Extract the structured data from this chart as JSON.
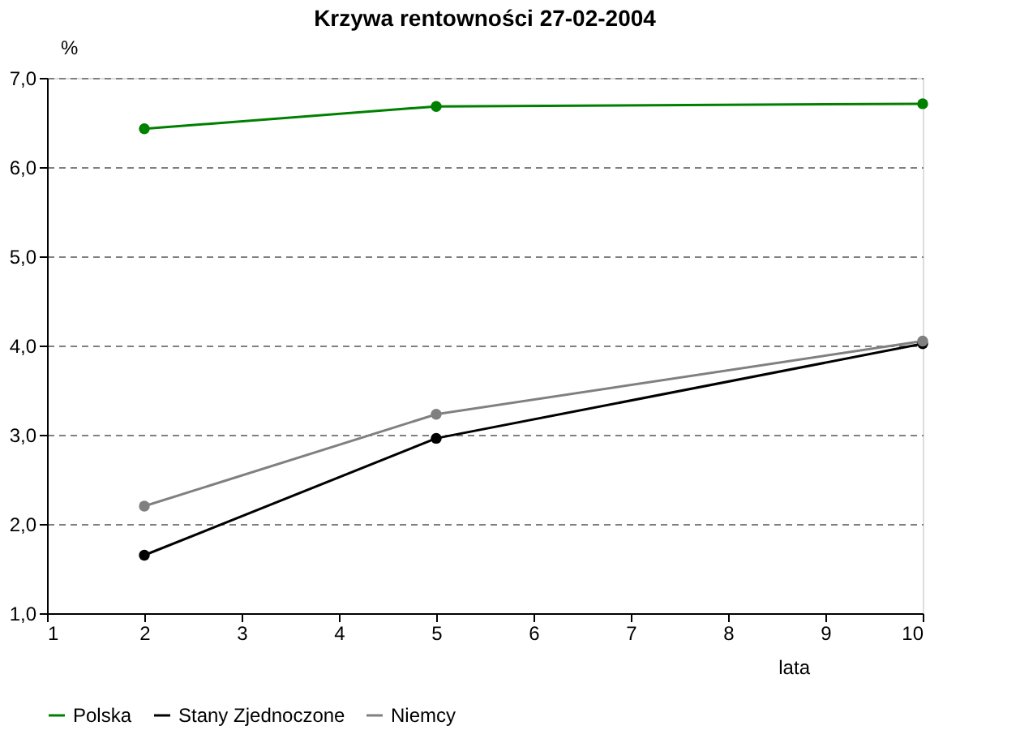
{
  "chart_data": {
    "type": "line",
    "title": "Krzywa rentowności 27-02-2004",
    "ylabel": "%",
    "xlabel": "lata",
    "x": [
      2,
      5,
      10
    ],
    "series": [
      {
        "name": "Polska",
        "color": "#008000",
        "values": [
          6.43,
          6.68,
          6.71
        ]
      },
      {
        "name": "Stany Zjednoczone",
        "color": "#000000",
        "values": [
          1.65,
          2.96,
          4.02
        ]
      },
      {
        "name": "Niemcy",
        "color": "#808080",
        "values": [
          2.2,
          3.23,
          4.05
        ]
      }
    ],
    "xlim": [
      1,
      10
    ],
    "xticks": [
      1,
      2,
      3,
      4,
      5,
      6,
      7,
      8,
      9,
      10
    ],
    "ylim": [
      1,
      7
    ],
    "yticks": [
      {
        "value": 1,
        "label": "1,0"
      },
      {
        "value": 2,
        "label": "2,0"
      },
      {
        "value": 3,
        "label": "3,0"
      },
      {
        "value": 4,
        "label": "4,0"
      },
      {
        "value": 5,
        "label": "5,0"
      },
      {
        "value": 6,
        "label": "6,0"
      },
      {
        "value": 7,
        "label": "7,0"
      }
    ],
    "grid": "y",
    "legend": "bottom",
    "marker": "circle",
    "line_style": "solid"
  }
}
